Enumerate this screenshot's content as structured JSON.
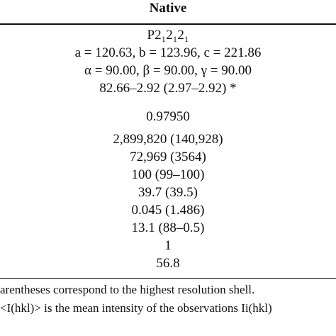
{
  "header": {
    "title": "Native"
  },
  "table": {
    "rows": [
      "P2₁2₁2₁",
      "a = 120.63, b = 123.96, c = 221.86",
      "α = 90.00, β = 90.00, γ = 90.00",
      "82.66–2.92 (2.97–2.92) *",
      "0.97950",
      "2,899,820 (140,928)",
      "72,969 (3564)",
      "100 (99–100)",
      "39.7 (39.5)",
      "0.045 (1.486)",
      "13.1 (88–0.5)",
      "1",
      "56.8"
    ]
  },
  "footnotes": [
    "arentheses correspond to the highest resolution shell.",
    "<I(hkl)> is the mean intensity of the observations Ii(hkl)"
  ]
}
